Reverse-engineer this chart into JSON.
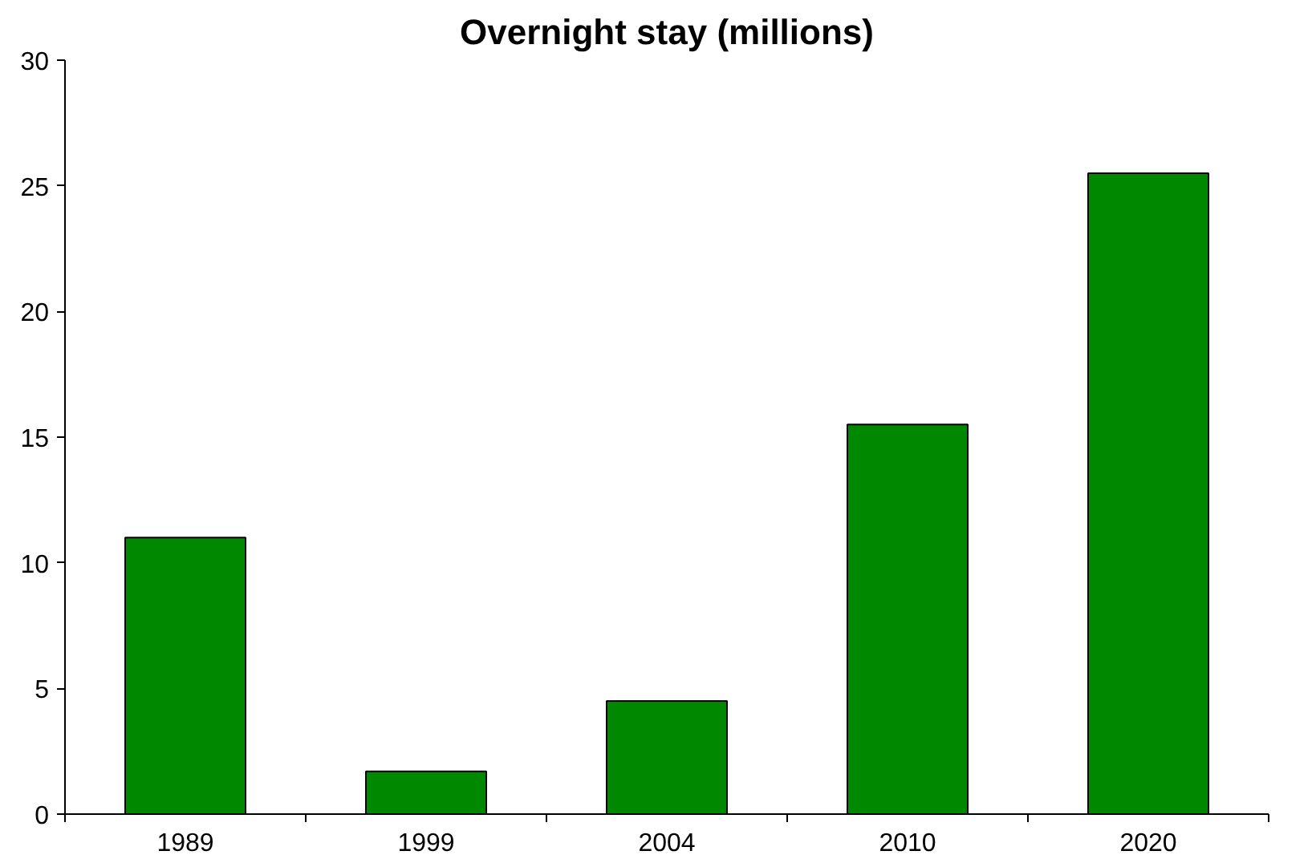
{
  "chart_data": {
    "type": "bar",
    "title": "Overnight stay (millions)",
    "categories": [
      "1989",
      "1999",
      "2004",
      "2010",
      "2020"
    ],
    "values": [
      11,
      1.7,
      4.5,
      15.5,
      25.5
    ],
    "color": "#008800",
    "ylim": [
      0,
      30
    ],
    "yticks": [
      0,
      5,
      10,
      15,
      20,
      25,
      30
    ],
    "grid": false
  }
}
